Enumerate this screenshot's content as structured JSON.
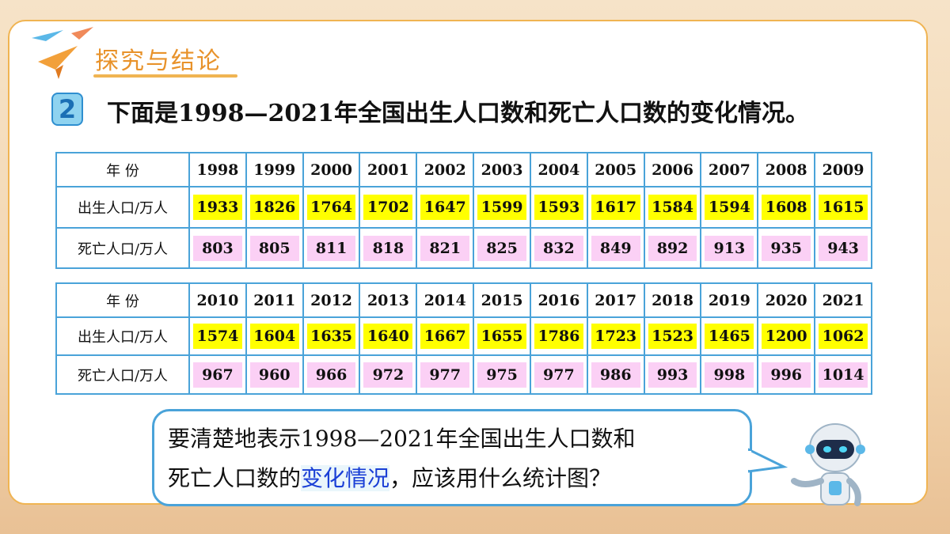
{
  "header": {
    "title": "探究与结论"
  },
  "problem": {
    "number": "2",
    "text": "下面是1998—2021年全国出生人口数和死亡人口数的变化情况。"
  },
  "tables": [
    {
      "rows": [
        [
          "年 份",
          1998,
          1999,
          2000,
          2001,
          2002,
          2003,
          2004,
          2005,
          2006,
          2007,
          2008,
          2009
        ],
        [
          "出生人口/万人",
          1933,
          1826,
          1764,
          1702,
          1647,
          1599,
          1593,
          1617,
          1584,
          1594,
          1608,
          1615
        ],
        [
          "死亡人口/万人",
          803,
          805,
          811,
          818,
          821,
          825,
          832,
          849,
          892,
          913,
          935,
          943
        ]
      ]
    },
    {
      "rows": [
        [
          "年 份",
          2010,
          2011,
          2012,
          2013,
          2014,
          2015,
          2016,
          2017,
          2018,
          2019,
          2020,
          2021
        ],
        [
          "出生人口/万人",
          1574,
          1604,
          1635,
          1640,
          1667,
          1655,
          1786,
          1723,
          1523,
          1465,
          1200,
          1062
        ],
        [
          "死亡人口/万人",
          967,
          960,
          966,
          972,
          977,
          975,
          977,
          986,
          993,
          998,
          996,
          1014
        ]
      ]
    }
  ],
  "bubble": {
    "lines": [
      [
        "要清楚地表示1998—2021年全国出生人口数和"
      ],
      [
        "死亡人口数的",
        "变化情况",
        "，应该用什么统计图？"
      ]
    ]
  }
}
